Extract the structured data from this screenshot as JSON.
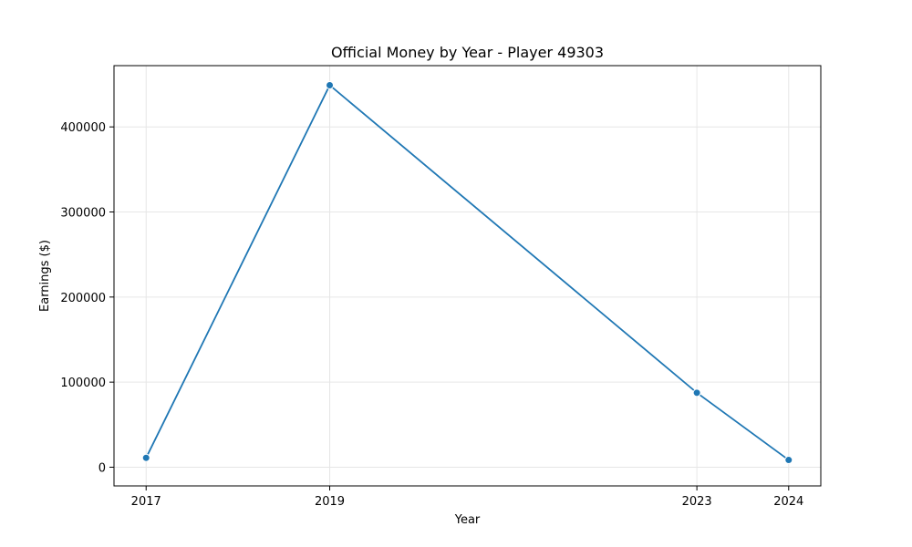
{
  "chart_data": {
    "type": "line",
    "title": "Official Money by Year - Player 49303",
    "xlabel": "Year",
    "ylabel": "Earnings ($)",
    "x": [
      2017,
      2019,
      2023,
      2024
    ],
    "xticks": [
      "2017",
      "2019",
      "2023",
      "2024"
    ],
    "yticks": [
      "0",
      "100000",
      "200000",
      "300000",
      "400000"
    ],
    "xlim": [
      2016.65,
      2024.35
    ],
    "ylim": [
      -22000,
      472000
    ],
    "grid": true,
    "series": [
      {
        "values": [
          11000,
          449000,
          87500,
          8500
        ],
        "color": "#1f77b4"
      }
    ]
  }
}
